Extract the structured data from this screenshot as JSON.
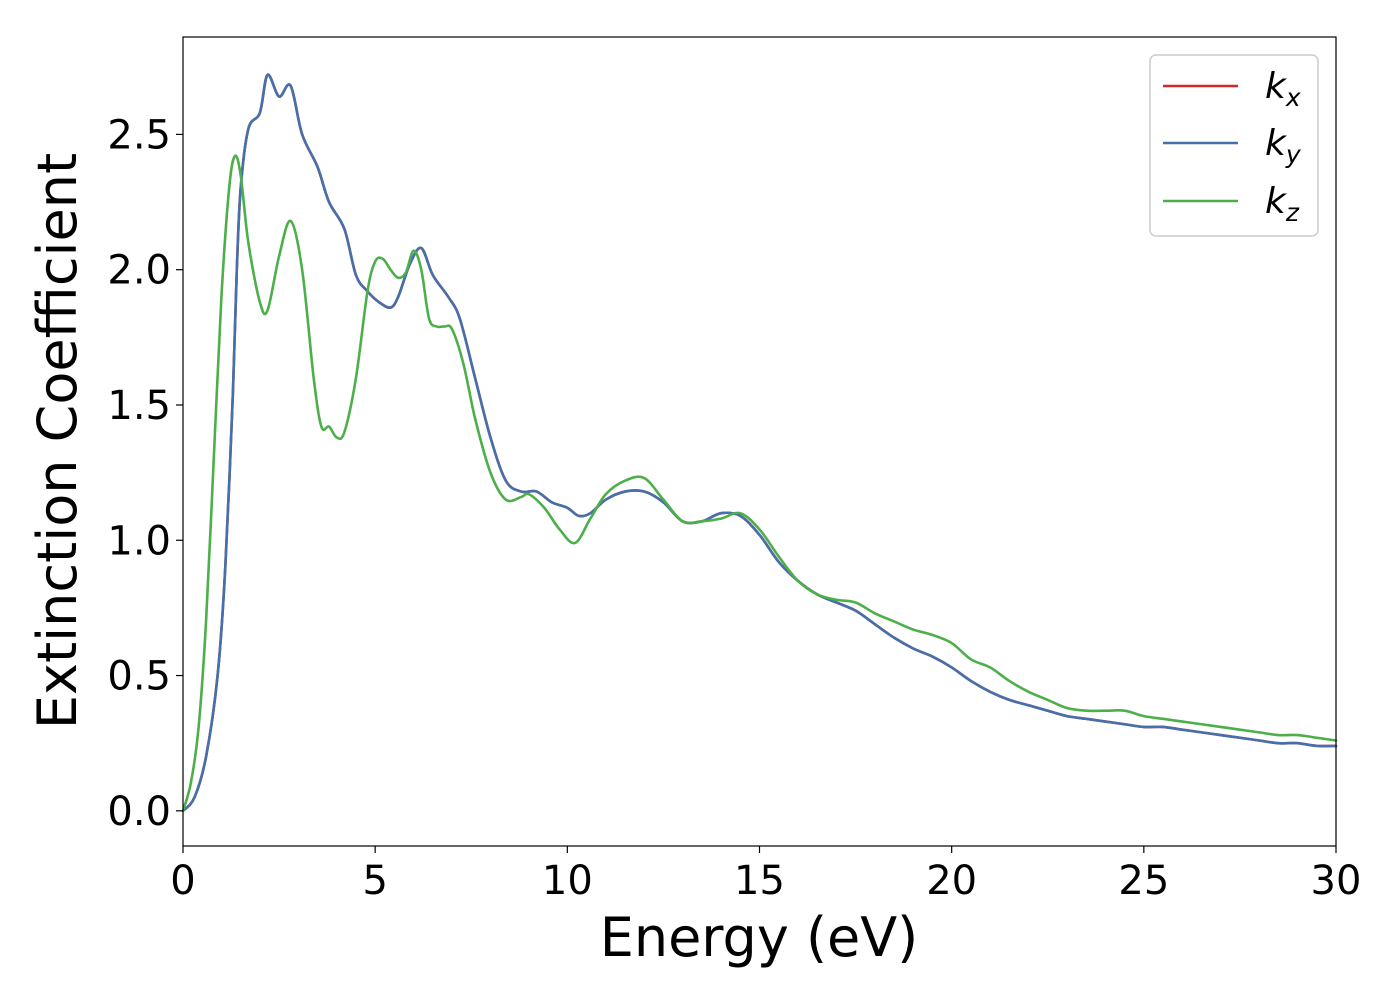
{
  "chart_data": {
    "type": "line",
    "xlabel": "Energy (eV)",
    "ylabel": "Extinction Coefficient",
    "xlim": [
      0,
      30
    ],
    "ylim": [
      -0.13,
      2.86
    ],
    "xticks": [
      0,
      5,
      10,
      15,
      20,
      25,
      30
    ],
    "yticks": [
      0.0,
      0.5,
      1.0,
      1.5,
      2.0,
      2.5
    ],
    "xtick_labels": [
      "0",
      "5",
      "10",
      "15",
      "20",
      "25",
      "30"
    ],
    "ytick_labels": [
      "0.0",
      "0.5",
      "1.0",
      "1.5",
      "2.0",
      "2.5"
    ],
    "grid": false,
    "legend_position": "top-right",
    "series": [
      {
        "name": "k_x",
        "label_base": "k",
        "label_sub": "x",
        "color": "#d62728",
        "x": [
          0,
          0.3,
          0.6,
          0.9,
          1.1,
          1.3,
          1.4,
          1.5,
          1.7,
          2.0,
          2.2,
          2.5,
          2.8,
          3.1,
          3.5,
          3.8,
          4.2,
          4.5,
          4.8,
          5.1,
          5.4,
          5.6,
          5.9,
          6.2,
          6.5,
          6.9,
          7.2,
          7.6,
          8.0,
          8.4,
          8.8,
          9.2,
          9.6,
          10.0,
          10.3,
          10.6,
          11.0,
          11.5,
          12.0,
          12.5,
          13.0,
          13.5,
          14.0,
          14.5,
          15.0,
          15.5,
          16.0,
          16.5,
          17.0,
          17.5,
          18.0,
          18.5,
          19.0,
          19.5,
          20.0,
          20.5,
          21.0,
          21.5,
          22.0,
          22.5,
          23.0,
          23.5,
          24.0,
          24.5,
          25.0,
          25.5,
          26.0,
          26.5,
          27.0,
          27.5,
          28.0,
          28.5,
          29.0,
          29.5,
          30.0
        ],
        "values": [
          0.0,
          0.05,
          0.2,
          0.5,
          0.9,
          1.55,
          2.0,
          2.3,
          2.52,
          2.58,
          2.72,
          2.64,
          2.68,
          2.5,
          2.38,
          2.25,
          2.15,
          1.98,
          1.92,
          1.88,
          1.86,
          1.9,
          2.02,
          2.08,
          1.98,
          1.9,
          1.82,
          1.6,
          1.38,
          1.22,
          1.18,
          1.18,
          1.14,
          1.12,
          1.09,
          1.1,
          1.15,
          1.18,
          1.18,
          1.14,
          1.07,
          1.07,
          1.1,
          1.09,
          1.02,
          0.92,
          0.85,
          0.8,
          0.77,
          0.74,
          0.69,
          0.64,
          0.6,
          0.57,
          0.53,
          0.48,
          0.44,
          0.41,
          0.39,
          0.37,
          0.35,
          0.34,
          0.33,
          0.32,
          0.31,
          0.31,
          0.3,
          0.29,
          0.28,
          0.27,
          0.26,
          0.25,
          0.25,
          0.24,
          0.24
        ]
      },
      {
        "name": "k_y",
        "label_base": "k",
        "label_sub": "y",
        "color": "#4470ab",
        "x": [
          0,
          0.3,
          0.6,
          0.9,
          1.1,
          1.3,
          1.4,
          1.5,
          1.7,
          2.0,
          2.2,
          2.5,
          2.8,
          3.1,
          3.5,
          3.8,
          4.2,
          4.5,
          4.8,
          5.1,
          5.4,
          5.6,
          5.9,
          6.2,
          6.5,
          6.9,
          7.2,
          7.6,
          8.0,
          8.4,
          8.8,
          9.2,
          9.6,
          10.0,
          10.3,
          10.6,
          11.0,
          11.5,
          12.0,
          12.5,
          13.0,
          13.5,
          14.0,
          14.5,
          15.0,
          15.5,
          16.0,
          16.5,
          17.0,
          17.5,
          18.0,
          18.5,
          19.0,
          19.5,
          20.0,
          20.5,
          21.0,
          21.5,
          22.0,
          22.5,
          23.0,
          23.5,
          24.0,
          24.5,
          25.0,
          25.5,
          26.0,
          26.5,
          27.0,
          27.5,
          28.0,
          28.5,
          29.0,
          29.5,
          30.0
        ],
        "values": [
          0.0,
          0.05,
          0.2,
          0.5,
          0.9,
          1.55,
          2.0,
          2.3,
          2.52,
          2.58,
          2.72,
          2.64,
          2.68,
          2.5,
          2.38,
          2.25,
          2.15,
          1.98,
          1.92,
          1.88,
          1.86,
          1.9,
          2.02,
          2.08,
          1.98,
          1.9,
          1.82,
          1.6,
          1.38,
          1.22,
          1.18,
          1.18,
          1.14,
          1.12,
          1.09,
          1.1,
          1.15,
          1.18,
          1.18,
          1.14,
          1.07,
          1.07,
          1.1,
          1.09,
          1.02,
          0.92,
          0.85,
          0.8,
          0.77,
          0.74,
          0.69,
          0.64,
          0.6,
          0.57,
          0.53,
          0.48,
          0.44,
          0.41,
          0.39,
          0.37,
          0.35,
          0.34,
          0.33,
          0.32,
          0.31,
          0.31,
          0.3,
          0.29,
          0.28,
          0.27,
          0.26,
          0.25,
          0.25,
          0.24,
          0.24
        ]
      },
      {
        "name": "k_z",
        "label_base": "k",
        "label_sub": "z",
        "color": "#4daf4a",
        "x": [
          0,
          0.2,
          0.4,
          0.6,
          0.8,
          1.0,
          1.2,
          1.35,
          1.5,
          1.7,
          2.0,
          2.2,
          2.5,
          2.8,
          3.1,
          3.4,
          3.6,
          3.8,
          4.0,
          4.2,
          4.5,
          4.8,
          5.0,
          5.2,
          5.4,
          5.6,
          5.8,
          6.0,
          6.2,
          6.4,
          6.6,
          6.8,
          7.0,
          7.3,
          7.6,
          8.0,
          8.4,
          8.8,
          9.0,
          9.4,
          9.8,
          10.2,
          10.6,
          11.0,
          11.5,
          12.0,
          12.5,
          13.0,
          13.5,
          14.0,
          14.5,
          15.0,
          15.5,
          16.0,
          16.5,
          17.0,
          17.5,
          18.0,
          18.5,
          19.0,
          19.5,
          20.0,
          20.5,
          21.0,
          21.5,
          22.0,
          22.5,
          23.0,
          23.5,
          24.0,
          24.5,
          25.0,
          25.5,
          26.0,
          26.5,
          27.0,
          27.5,
          28.0,
          28.5,
          29.0,
          29.5,
          30.0
        ],
        "values": [
          0.0,
          0.1,
          0.3,
          0.7,
          1.3,
          1.9,
          2.3,
          2.42,
          2.35,
          2.1,
          1.88,
          1.85,
          2.05,
          2.18,
          2.0,
          1.6,
          1.42,
          1.42,
          1.38,
          1.4,
          1.6,
          1.92,
          2.03,
          2.04,
          2.0,
          1.97,
          1.99,
          2.07,
          2.0,
          1.82,
          1.79,
          1.79,
          1.78,
          1.65,
          1.45,
          1.25,
          1.15,
          1.16,
          1.17,
          1.12,
          1.04,
          0.99,
          1.08,
          1.17,
          1.22,
          1.23,
          1.15,
          1.07,
          1.07,
          1.08,
          1.1,
          1.04,
          0.94,
          0.85,
          0.8,
          0.78,
          0.77,
          0.73,
          0.7,
          0.67,
          0.65,
          0.62,
          0.56,
          0.53,
          0.48,
          0.44,
          0.41,
          0.38,
          0.37,
          0.37,
          0.37,
          0.35,
          0.34,
          0.33,
          0.32,
          0.31,
          0.3,
          0.29,
          0.28,
          0.28,
          0.27,
          0.26
        ]
      }
    ]
  }
}
